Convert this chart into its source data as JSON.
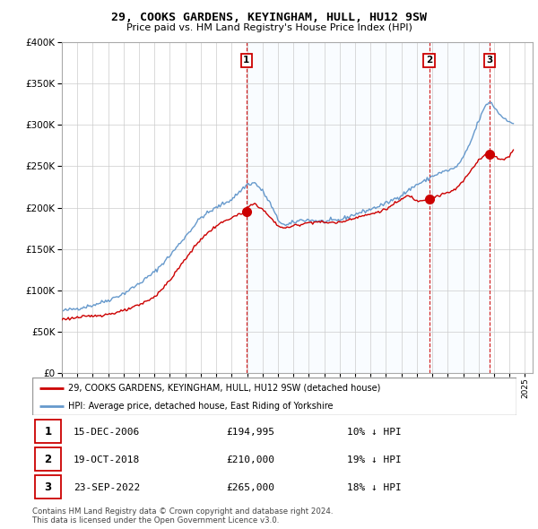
{
  "title": "29, COOKS GARDENS, KEYINGHAM, HULL, HU12 9SW",
  "subtitle": "Price paid vs. HM Land Registry's House Price Index (HPI)",
  "legend_line1": "29, COOKS GARDENS, KEYINGHAM, HULL, HU12 9SW (detached house)",
  "legend_line2": "HPI: Average price, detached house, East Riding of Yorkshire",
  "footer1": "Contains HM Land Registry data © Crown copyright and database right 2024.",
  "footer2": "This data is licensed under the Open Government Licence v3.0.",
  "sale_points": [
    {
      "label": "1",
      "date": "15-DEC-2006",
      "price": 194995,
      "pct": "10%",
      "dir": "↓",
      "x_year": 2006.96
    },
    {
      "label": "2",
      "date": "19-OCT-2018",
      "price": 210000,
      "pct": "19%",
      "dir": "↓",
      "x_year": 2018.8
    },
    {
      "label": "3",
      "date": "23-SEP-2022",
      "price": 265000,
      "pct": "18%",
      "dir": "↓",
      "x_year": 2022.72
    }
  ],
  "red_color": "#cc0000",
  "blue_color": "#6699cc",
  "shade_color": "#ddeeff",
  "background_color": "#ffffff",
  "grid_color": "#cccccc",
  "xlim": [
    1995,
    2025.5
  ],
  "ylim": [
    0,
    400000
  ],
  "yticks": [
    0,
    50000,
    100000,
    150000,
    200000,
    250000,
    300000,
    350000,
    400000
  ],
  "xticks": [
    1995,
    1996,
    1997,
    1998,
    1999,
    2000,
    2001,
    2002,
    2003,
    2004,
    2005,
    2006,
    2007,
    2008,
    2009,
    2010,
    2011,
    2012,
    2013,
    2014,
    2015,
    2016,
    2017,
    2018,
    2019,
    2020,
    2021,
    2022,
    2023,
    2024,
    2025
  ]
}
